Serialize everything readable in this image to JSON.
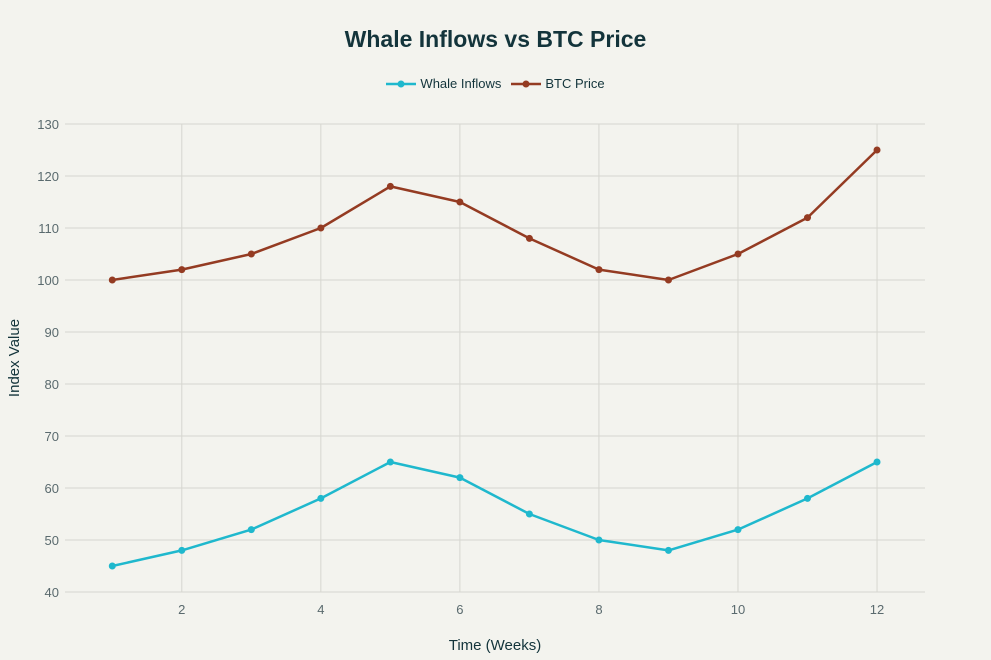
{
  "chart_data": {
    "type": "line",
    "title": "Whale Inflows vs BTC Price",
    "xlabel": "Time (Weeks)",
    "ylabel": "Index Value",
    "x": [
      1,
      2,
      3,
      4,
      5,
      6,
      7,
      8,
      9,
      10,
      11,
      12
    ],
    "series": [
      {
        "name": "Whale Inflows",
        "color": "#1fb8cd",
        "values": [
          45,
          48,
          52,
          58,
          65,
          62,
          55,
          50,
          48,
          52,
          58,
          65
        ]
      },
      {
        "name": "BTC Price",
        "color": "#943b22",
        "values": [
          100,
          102,
          105,
          110,
          118,
          115,
          108,
          102,
          100,
          105,
          112,
          125
        ]
      }
    ],
    "xticks": [
      2,
      4,
      6,
      8,
      10,
      12
    ],
    "yticks": [
      40,
      50,
      60,
      70,
      80,
      90,
      100,
      110,
      120,
      130
    ],
    "xlim": [
      0.32,
      12.69
    ],
    "ylim": [
      40,
      130
    ],
    "grid": true,
    "legend": "top-center"
  }
}
